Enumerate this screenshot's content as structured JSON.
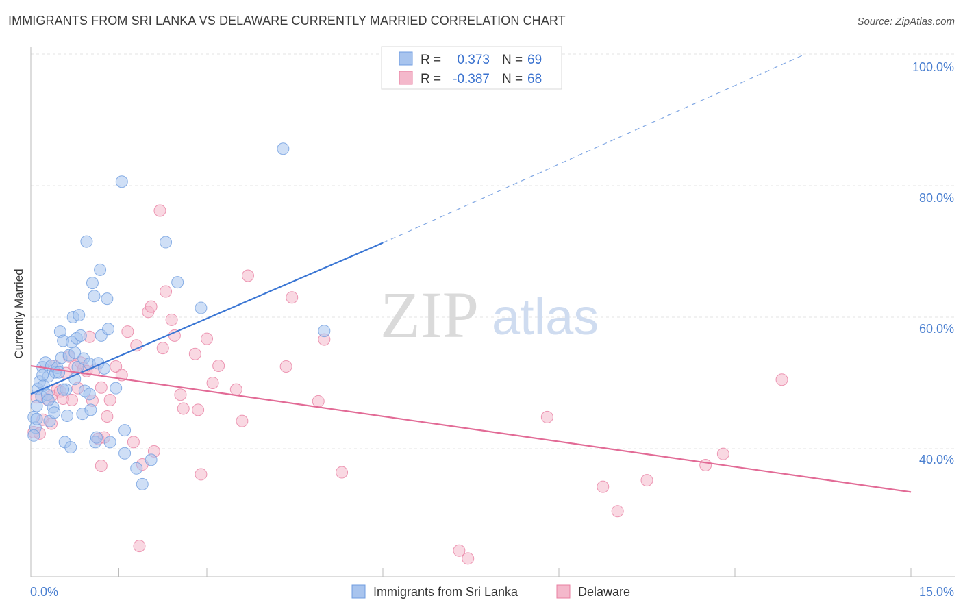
{
  "title": "IMMIGRANTS FROM SRI LANKA VS DELAWARE CURRENTLY MARRIED CORRELATION CHART",
  "source": "Source: ZipAtlas.com",
  "watermark": {
    "zip": "ZIP",
    "atlas": "atlas"
  },
  "legend": {
    "rows": [
      {
        "r_label": "R =",
        "r_value": "0.373",
        "n_label": "N =",
        "n_value": "69",
        "color": "#a8c4ee"
      },
      {
        "r_label": "R =",
        "r_value": "-0.387",
        "n_label": "N =",
        "n_value": "68",
        "color": "#f4b8cb"
      }
    ]
  },
  "chart_data": {
    "type": "scatter",
    "ylabel": "Currently Married",
    "x_ticks": [
      "0.0%",
      "15.0%"
    ],
    "y_ticks": [
      "100.0%",
      "80.0%",
      "60.0%",
      "40.0%"
    ],
    "xlim": [
      0,
      15
    ],
    "ylim": [
      18,
      102
    ],
    "grid": true,
    "legend_position": "bottom",
    "series": [
      {
        "name": "Immigrants from Sri Lanka",
        "color": "#6f9de0",
        "fill": "#a8c4ee",
        "trend": {
          "x0": 0,
          "y0": 48.3,
          "x1": 6,
          "y1": 71.3,
          "dashed_to_x": 13.2,
          "dashed_to_y": 100
        },
        "points": [
          [
            0.05,
            44.8
          ],
          [
            0.08,
            43.2
          ],
          [
            0.1,
            46.5
          ],
          [
            0.12,
            49.1
          ],
          [
            0.15,
            50.2
          ],
          [
            0.18,
            47.9
          ],
          [
            0.2,
            52.4
          ],
          [
            0.22,
            49.6
          ],
          [
            0.25,
            53.1
          ],
          [
            0.28,
            48.2
          ],
          [
            0.3,
            51.0
          ],
          [
            0.32,
            44.2
          ],
          [
            0.35,
            52.6
          ],
          [
            0.38,
            46.3
          ],
          [
            0.4,
            45.5
          ],
          [
            0.42,
            51.6
          ],
          [
            0.45,
            52.3
          ],
          [
            0.48,
            51.6
          ],
          [
            0.5,
            57.8
          ],
          [
            0.52,
            53.8
          ],
          [
            0.55,
            56.4
          ],
          [
            0.58,
            41.0
          ],
          [
            0.6,
            49.0
          ],
          [
            0.62,
            45.0
          ],
          [
            0.65,
            54.2
          ],
          [
            0.68,
            40.2
          ],
          [
            0.7,
            56.2
          ],
          [
            0.72,
            60.0
          ],
          [
            0.75,
            54.6
          ],
          [
            0.78,
            56.8
          ],
          [
            0.8,
            52.4
          ],
          [
            0.82,
            60.3
          ],
          [
            0.85,
            57.2
          ],
          [
            0.88,
            45.3
          ],
          [
            0.9,
            53.7
          ],
          [
            0.92,
            48.8
          ],
          [
            0.95,
            71.5
          ],
          [
            1.0,
            52.9
          ],
          [
            1.02,
            45.9
          ],
          [
            1.05,
            65.2
          ],
          [
            1.08,
            63.2
          ],
          [
            1.1,
            41.0
          ],
          [
            1.12,
            41.7
          ],
          [
            1.15,
            53.0
          ],
          [
            1.18,
            67.2
          ],
          [
            1.2,
            57.2
          ],
          [
            1.25,
            52.2
          ],
          [
            1.3,
            62.8
          ],
          [
            1.32,
            58.2
          ],
          [
            1.35,
            41.0
          ],
          [
            1.45,
            49.2
          ],
          [
            1.55,
            80.6
          ],
          [
            1.6,
            42.8
          ],
          [
            1.6,
            39.3
          ],
          [
            1.8,
            37.0
          ],
          [
            1.9,
            34.6
          ],
          [
            2.05,
            38.3
          ],
          [
            2.3,
            71.4
          ],
          [
            2.5,
            65.3
          ],
          [
            2.9,
            61.4
          ],
          [
            4.3,
            85.6
          ],
          [
            5.0,
            57.9
          ],
          [
            0.05,
            42.0
          ],
          [
            0.1,
            44.5
          ],
          [
            0.3,
            47.4
          ],
          [
            0.55,
            49.0
          ],
          [
            0.75,
            50.6
          ],
          [
            0.2,
            51.2
          ],
          [
            1.0,
            48.3
          ]
        ]
      },
      {
        "name": "Delaware",
        "color": "#e87fa2",
        "fill": "#f4b8cb",
        "trend": {
          "x0": 0,
          "y0": 52.6,
          "x1": 15,
          "y1": 33.4
        },
        "points": [
          [
            0.05,
            42.5
          ],
          [
            0.1,
            47.8
          ],
          [
            0.15,
            42.3
          ],
          [
            0.2,
            44.4
          ],
          [
            0.28,
            47.5
          ],
          [
            0.35,
            48.0
          ],
          [
            0.4,
            52.6
          ],
          [
            0.45,
            49.0
          ],
          [
            0.5,
            48.7
          ],
          [
            0.55,
            47.6
          ],
          [
            0.6,
            51.5
          ],
          [
            0.65,
            54.0
          ],
          [
            0.7,
            47.4
          ],
          [
            0.75,
            52.5
          ],
          [
            0.8,
            49.2
          ],
          [
            0.85,
            53.1
          ],
          [
            0.9,
            52.2
          ],
          [
            0.95,
            51.8
          ],
          [
            1.0,
            57.0
          ],
          [
            1.05,
            47.3
          ],
          [
            1.1,
            52.0
          ],
          [
            1.15,
            41.5
          ],
          [
            1.2,
            49.3
          ],
          [
            1.25,
            41.7
          ],
          [
            1.3,
            44.9
          ],
          [
            1.35,
            47.4
          ],
          [
            1.45,
            52.5
          ],
          [
            1.55,
            51.2
          ],
          [
            1.65,
            57.8
          ],
          [
            1.75,
            41.0
          ],
          [
            1.8,
            55.7
          ],
          [
            1.85,
            25.2
          ],
          [
            1.9,
            37.6
          ],
          [
            2.0,
            60.8
          ],
          [
            2.05,
            61.6
          ],
          [
            2.1,
            39.6
          ],
          [
            2.2,
            76.2
          ],
          [
            2.25,
            55.3
          ],
          [
            2.3,
            63.9
          ],
          [
            2.4,
            59.6
          ],
          [
            2.45,
            57.2
          ],
          [
            2.55,
            48.2
          ],
          [
            2.6,
            46.1
          ],
          [
            2.8,
            54.4
          ],
          [
            2.85,
            45.9
          ],
          [
            2.9,
            36.1
          ],
          [
            3.0,
            56.7
          ],
          [
            3.1,
            50.0
          ],
          [
            3.2,
            52.6
          ],
          [
            3.5,
            49.0
          ],
          [
            3.6,
            44.2
          ],
          [
            3.7,
            66.3
          ],
          [
            4.35,
            52.5
          ],
          [
            4.45,
            63.0
          ],
          [
            4.9,
            47.2
          ],
          [
            5.0,
            56.6
          ],
          [
            5.3,
            36.4
          ],
          [
            7.3,
            24.5
          ],
          [
            7.45,
            23.3
          ],
          [
            8.8,
            44.8
          ],
          [
            9.75,
            34.2
          ],
          [
            10.0,
            30.5
          ],
          [
            10.5,
            35.2
          ],
          [
            11.5,
            37.5
          ],
          [
            11.8,
            39.2
          ],
          [
            12.8,
            50.5
          ],
          [
            1.2,
            37.4
          ],
          [
            0.35,
            43.8
          ]
        ]
      }
    ]
  }
}
